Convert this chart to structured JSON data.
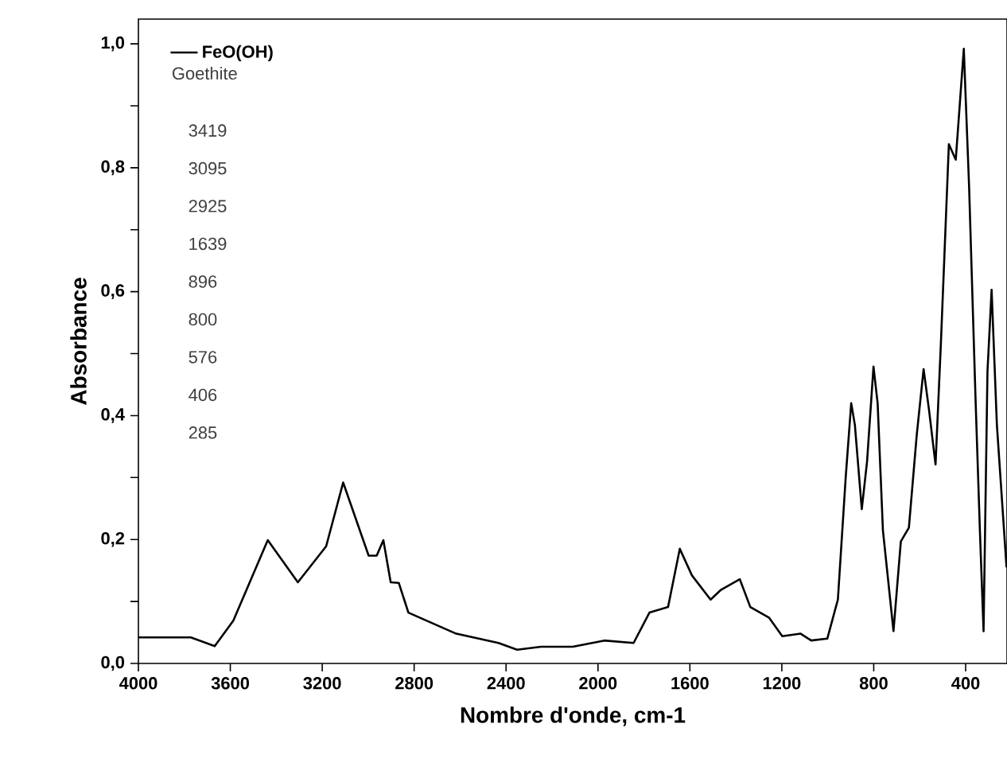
{
  "chart_data": {
    "type": "line",
    "xlabel": "Nombre d'onde, cm-1",
    "ylabel": "Absorbance",
    "xlim": [
      4000,
      220
    ],
    "ylim": [
      0,
      1.04
    ],
    "xticks": [
      4000,
      3600,
      3200,
      2800,
      2400,
      2000,
      1600,
      1200,
      800,
      400
    ],
    "yticks": [
      {
        "value": 0,
        "label": "0,0"
      },
      {
        "value": 0.1,
        "label": null
      },
      {
        "value": 0.2,
        "label": "0,2"
      },
      {
        "value": 0.3,
        "label": null
      },
      {
        "value": 0.4,
        "label": "0,4"
      },
      {
        "value": 0.5,
        "label": null
      },
      {
        "value": 0.6,
        "label": "0,6"
      },
      {
        "value": 0.7,
        "label": null
      },
      {
        "value": 0.8,
        "label": "0,8"
      },
      {
        "value": 0.9,
        "label": null
      },
      {
        "value": 1.0,
        "label": "1,0"
      }
    ],
    "legend": "top left",
    "annotations": [
      "Goethite",
      "3419",
      "3095",
      "2925",
      "1639",
      "896",
      "800",
      "576",
      "406",
      "285"
    ],
    "series": [
      {
        "name": "FeO(OH)",
        "color": "#000000",
        "x": [
          4000,
          3772,
          3668,
          3587,
          3437,
          3306,
          3183,
          3109,
          2998,
          2963,
          2934,
          2902,
          2867,
          2825,
          2617,
          2433,
          2352,
          2248,
          2110,
          1972,
          1845,
          1776,
          1695,
          1644,
          1591,
          1510,
          1464,
          1383,
          1337,
          1256,
          1198,
          1118,
          1072,
          1002,
          956,
          922,
          898,
          882,
          852,
          829,
          801,
          783,
          760,
          714,
          682,
          647,
          613,
          583,
          560,
          531,
          508,
          473,
          443,
          408,
          385,
          357,
          338,
          322,
          305,
          287,
          264,
          222
        ],
        "values": [
          0.042,
          0.042,
          0.028,
          0.069,
          0.199,
          0.131,
          0.189,
          0.292,
          0.174,
          0.174,
          0.199,
          0.131,
          0.13,
          0.082,
          0.048,
          0.033,
          0.022,
          0.027,
          0.027,
          0.037,
          0.033,
          0.082,
          0.091,
          0.185,
          0.142,
          0.103,
          0.119,
          0.136,
          0.091,
          0.074,
          0.044,
          0.048,
          0.037,
          0.04,
          0.103,
          0.3,
          0.42,
          0.385,
          0.249,
          0.326,
          0.479,
          0.42,
          0.215,
          0.052,
          0.197,
          0.219,
          0.368,
          0.475,
          0.411,
          0.321,
          0.514,
          0.838,
          0.813,
          0.992,
          0.77,
          0.428,
          0.215,
          0.052,
          0.471,
          0.603,
          0.385,
          0.155
        ]
      }
    ]
  }
}
